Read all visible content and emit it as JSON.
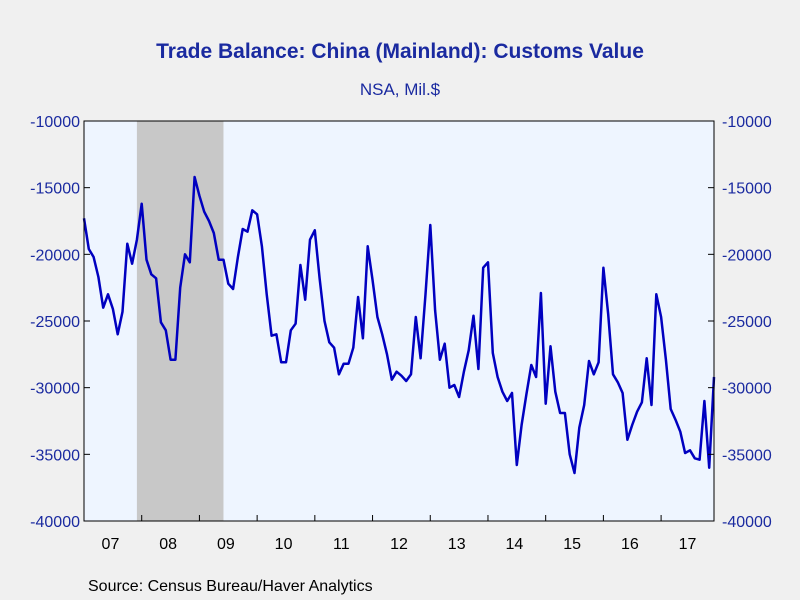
{
  "chart_data": {
    "type": "line",
    "title": "Trade Balance: China (Mainland): Customs Value",
    "subtitle": "NSA, Mil.$",
    "source": "Source:  Census Bureau/Haver Analytics",
    "xlabel": "",
    "ylabel": "",
    "ylim": [
      -40000,
      -10000
    ],
    "y_ticks": [
      -10000,
      -15000,
      -20000,
      -25000,
      -30000,
      -35000,
      -40000
    ],
    "y_tick_labels": [
      "-10000",
      "-15000",
      "-20000",
      "-25000",
      "-30000",
      "-35000",
      "-40000"
    ],
    "x_range": [
      "2007-01",
      "2017-12"
    ],
    "x_tick_labels": [
      "07",
      "08",
      "09",
      "10",
      "11",
      "12",
      "13",
      "14",
      "15",
      "16",
      "17"
    ],
    "grid": false,
    "line_color": "#0000c0",
    "plot_background": "#eef5ff",
    "recession_color": "#c8c8c8",
    "shaded_periods": [
      {
        "start": "2007-12",
        "end": "2009-06"
      }
    ],
    "series": [
      {
        "start": "2007-01",
        "frequency": "monthly",
        "values": [
          -17300,
          -19600,
          -20200,
          -21700,
          -24000,
          -23000,
          -24100,
          -26000,
          -24300,
          -19200,
          -20700,
          -18900,
          -16200,
          -20400,
          -21500,
          -21800,
          -25100,
          -25700,
          -27900,
          -27900,
          -22500,
          -20000,
          -20600,
          -14200,
          -15600,
          -16800,
          -17500,
          -18400,
          -20400,
          -20400,
          -22200,
          -22600,
          -20200,
          -18100,
          -18300,
          -16700,
          -17000,
          -19400,
          -23000,
          -26100,
          -26000,
          -28100,
          -28100,
          -25700,
          -25200,
          -20800,
          -23400,
          -18900,
          -18200,
          -21800,
          -25000,
          -26600,
          -27000,
          -29000,
          -28200,
          -28200,
          -27000,
          -23200,
          -26300,
          -19400,
          -21900,
          -24700,
          -26000,
          -27500,
          -29400,
          -28800,
          -29100,
          -29500,
          -29000,
          -24700,
          -27800,
          -23000,
          -17800,
          -24200,
          -27900,
          -26700,
          -30000,
          -29800,
          -30700,
          -28800,
          -27200,
          -24600,
          -28600,
          -21000,
          -20600,
          -27400,
          -29200,
          -30300,
          -31000,
          -30400,
          -35800,
          -32800,
          -30500,
          -28300,
          -29200,
          -22900,
          -31200,
          -26900,
          -30300,
          -31900,
          -31900,
          -35000,
          -36400,
          -33000,
          -31300,
          -28000,
          -29000,
          -28100,
          -21000,
          -24500,
          -29000,
          -29600,
          -30400,
          -33900,
          -32800,
          -31800,
          -31100,
          -27800,
          -31300,
          -23000,
          -24700,
          -27900,
          -31600,
          -32400,
          -33300,
          -34900,
          -34700,
          -35300,
          -35400,
          -31000,
          -36000,
          -29200
        ]
      }
    ]
  }
}
